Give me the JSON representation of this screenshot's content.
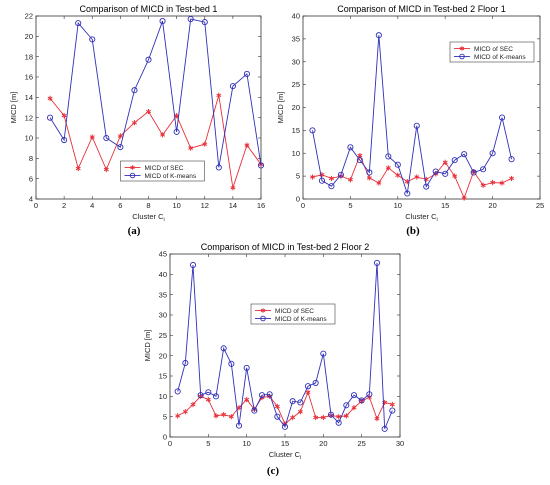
{
  "chart_data": [
    {
      "panel_label": "(a)",
      "type": "line",
      "title": "Comparison of MICD in Test-bed 1",
      "xlabel": "Cluster C",
      "xlabel_sub": "i",
      "ylabel": "MICD [m]",
      "xlim": [
        0,
        16
      ],
      "ylim": [
        4,
        22
      ],
      "xticks": [
        0,
        2,
        4,
        6,
        8,
        10,
        12,
        14,
        16
      ],
      "yticks": [
        4,
        6,
        8,
        10,
        12,
        14,
        16,
        18,
        20,
        22
      ],
      "legend_position": "bottom-center",
      "series": [
        {
          "name": "MICD of SEC",
          "color": "#e8303a",
          "marker": "star",
          "x": [
            1,
            2,
            3,
            4,
            5,
            6,
            7,
            8,
            9,
            10,
            11,
            12,
            13,
            14,
            15,
            16
          ],
          "values": [
            13.9,
            12.2,
            7.0,
            10.1,
            6.9,
            10.2,
            11.5,
            12.6,
            10.3,
            12.2,
            9.0,
            9.4,
            14.2,
            5.1,
            9.3,
            7.4
          ]
        },
        {
          "name": "MICD of K-means",
          "color": "#3030b8",
          "marker": "circle",
          "x": [
            1,
            2,
            3,
            4,
            5,
            6,
            7,
            8,
            9,
            10,
            11,
            12,
            13,
            14,
            15,
            16
          ],
          "values": [
            12.0,
            9.8,
            21.3,
            19.7,
            10.0,
            9.1,
            14.7,
            17.7,
            21.5,
            10.6,
            21.7,
            21.4,
            7.1,
            15.1,
            16.3,
            7.3
          ]
        }
      ]
    },
    {
      "panel_label": "(b)",
      "type": "line",
      "title": "Comparison of MICD in Test-bed 2 Floor 1",
      "xlabel": "Cluster C",
      "xlabel_sub": "i",
      "ylabel": "MICD [m]",
      "xlim": [
        0,
        25
      ],
      "ylim": [
        0,
        40
      ],
      "xticks": [
        0,
        5,
        10,
        15,
        20,
        25
      ],
      "yticks": [
        0,
        5,
        10,
        15,
        20,
        25,
        30,
        35,
        40
      ],
      "legend_position": "top-right",
      "series": [
        {
          "name": "MICD of SEC",
          "color": "#e8303a",
          "marker": "star",
          "x": [
            1,
            2,
            3,
            4,
            5,
            6,
            7,
            8,
            9,
            10,
            11,
            12,
            13,
            14,
            15,
            16,
            17,
            18,
            19,
            20,
            21,
            22
          ],
          "values": [
            4.8,
            5.3,
            4.5,
            5.0,
            4.2,
            9.5,
            4.6,
            3.5,
            6.8,
            5.2,
            3.8,
            4.8,
            4.3,
            5.5,
            8.0,
            5.0,
            0.2,
            6.0,
            3.0,
            3.6,
            3.5,
            4.5
          ]
        },
        {
          "name": "MICD of K-means",
          "color": "#3030b8",
          "marker": "circle",
          "x": [
            1,
            2,
            3,
            4,
            5,
            6,
            7,
            8,
            9,
            10,
            11,
            12,
            13,
            14,
            15,
            16,
            17,
            18,
            19,
            20,
            21,
            22
          ],
          "values": [
            15.0,
            4.0,
            2.8,
            5.3,
            11.3,
            8.5,
            5.8,
            35.8,
            9.3,
            7.5,
            1.2,
            16.0,
            2.7,
            6.0,
            5.5,
            8.5,
            9.8,
            5.8,
            6.5,
            10.0,
            17.8,
            8.7
          ]
        }
      ]
    },
    {
      "panel_label": "(c)",
      "type": "line",
      "title": "Comparison of MICD in Test-bed 2 Floor 2",
      "xlabel": "Cluster C",
      "xlabel_sub": "i",
      "ylabel": "MICD [m]",
      "xlim": [
        0,
        30
      ],
      "ylim": [
        0,
        45
      ],
      "xticks": [
        0,
        5,
        10,
        15,
        20,
        25,
        30
      ],
      "yticks": [
        0,
        5,
        10,
        15,
        20,
        25,
        30,
        35,
        40,
        45
      ],
      "legend_position": "top-center",
      "series": [
        {
          "name": "MICD of SEC",
          "color": "#e8303a",
          "marker": "star",
          "x": [
            1,
            2,
            3,
            4,
            5,
            6,
            7,
            8,
            9,
            10,
            11,
            12,
            13,
            14,
            15,
            16,
            17,
            18,
            19,
            20,
            21,
            22,
            23,
            24,
            25,
            26,
            27,
            28,
            29
          ],
          "values": [
            5.2,
            6.2,
            8.0,
            10.0,
            9.2,
            5.2,
            5.5,
            5.0,
            7.2,
            9.2,
            6.8,
            9.7,
            10.0,
            7.5,
            3.2,
            4.8,
            6.2,
            11.0,
            4.8,
            4.8,
            5.3,
            5.0,
            5.2,
            7.2,
            8.8,
            9.8,
            4.5,
            8.5,
            8.0
          ]
        },
        {
          "name": "MICD of K-means",
          "color": "#3030b8",
          "marker": "circle",
          "x": [
            1,
            2,
            3,
            4,
            5,
            6,
            7,
            8,
            9,
            10,
            11,
            12,
            13,
            14,
            15,
            16,
            17,
            18,
            19,
            20,
            21,
            22,
            23,
            24,
            25,
            26,
            27,
            28,
            29
          ],
          "values": [
            11.2,
            18.2,
            42.3,
            10.3,
            11.0,
            10.0,
            21.8,
            18.0,
            2.8,
            17.0,
            6.5,
            10.3,
            10.5,
            5.0,
            2.5,
            8.8,
            8.5,
            12.5,
            13.3,
            20.5,
            5.5,
            3.5,
            7.8,
            10.3,
            9.0,
            10.5,
            42.8,
            2.0,
            6.5
          ]
        }
      ]
    }
  ]
}
